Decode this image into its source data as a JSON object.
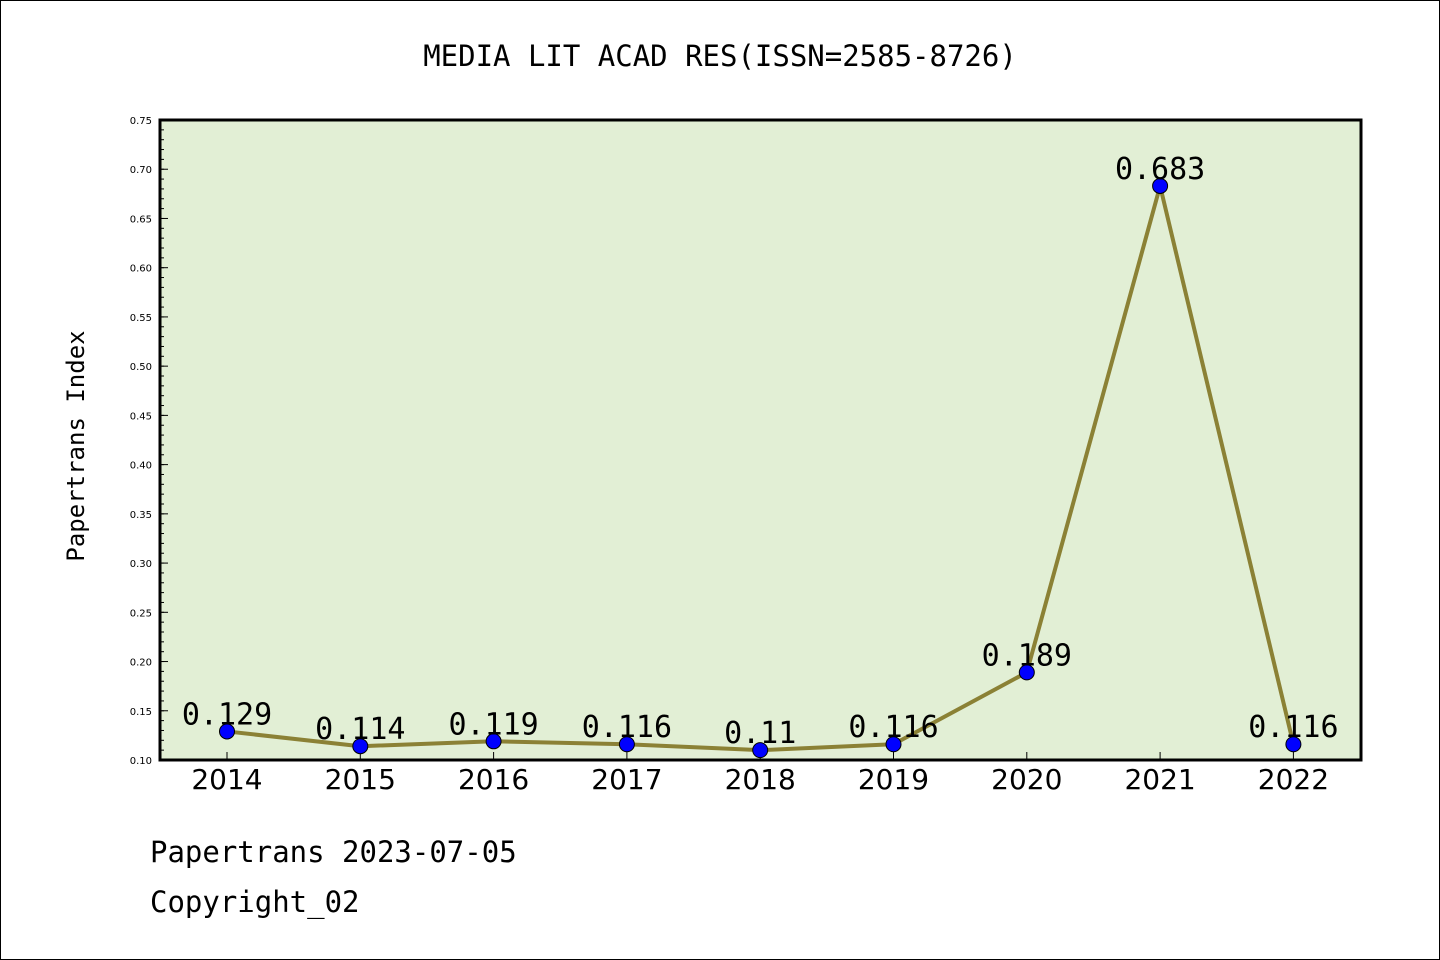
{
  "chart_data": {
    "type": "line",
    "title": "MEDIA LIT ACAD RES(ISSN=2585-8726)",
    "xlabel": "",
    "ylabel": "Papertrans Index",
    "categories": [
      "2014",
      "2015",
      "2016",
      "2017",
      "2018",
      "2019",
      "2020",
      "2021",
      "2022"
    ],
    "series": [
      {
        "values": [
          0.129,
          0.114,
          0.119,
          0.116,
          0.11,
          0.116,
          0.189,
          0.683,
          0.116
        ],
        "data_labels": [
          "0.129",
          "0.114",
          "0.119",
          "0.116",
          "0.11",
          "0.116",
          "0.189",
          "0.683",
          "0.116"
        ]
      }
    ],
    "ylim": [
      0.1,
      0.75
    ],
    "yticks": [
      "0.10",
      "0.15",
      "0.20",
      "0.25",
      "0.30",
      "0.35",
      "0.40",
      "0.45",
      "0.50",
      "0.55",
      "0.60",
      "0.65",
      "0.70",
      "0.75"
    ],
    "grid": false,
    "legend": "none",
    "colors": {
      "plot_background": "#e2efd5",
      "line": "#8b8135",
      "marker": "#0000ff"
    }
  },
  "footer": {
    "source": "Papertrans 2023-07-05",
    "copyright": "Copyright_02"
  }
}
